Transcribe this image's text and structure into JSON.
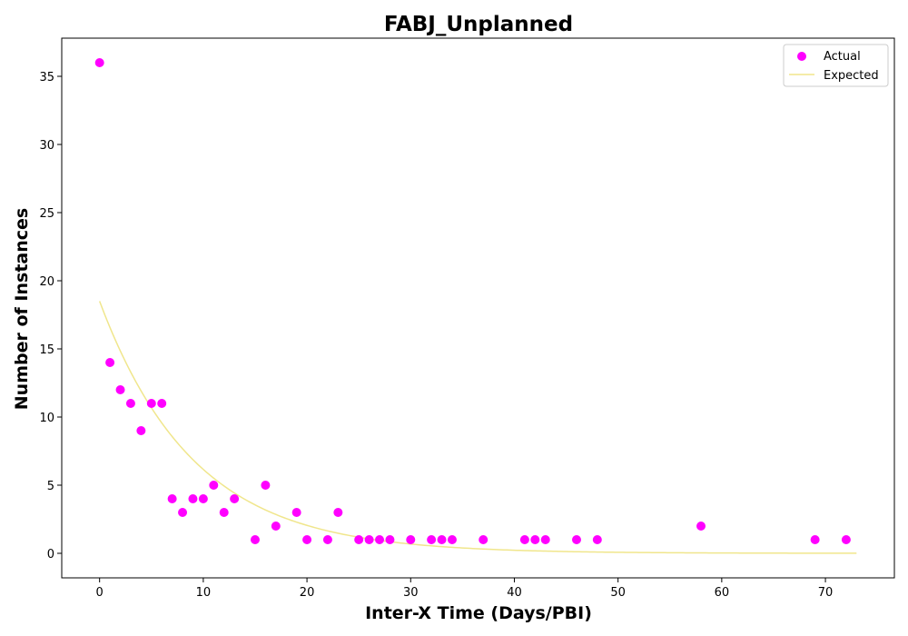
{
  "chart_data": {
    "type": "scatter",
    "title": "FABJ_Unplanned",
    "xlabel": "Inter-X Time (Days/PBI)",
    "ylabel": "Number of Instances",
    "xlim": [
      -3.65,
      76.65
    ],
    "ylim": [
      -1.8,
      37.8
    ],
    "xticks": [
      0,
      10,
      20,
      30,
      40,
      50,
      60,
      70
    ],
    "yticks": [
      0,
      5,
      10,
      15,
      20,
      25,
      30,
      35
    ],
    "grid": false,
    "legend_position": "top-right",
    "series": [
      {
        "name": "Actual",
        "kind": "scatter",
        "color": "#ff00ff",
        "points": [
          [
            0,
            36
          ],
          [
            1,
            14
          ],
          [
            2,
            12
          ],
          [
            3,
            11
          ],
          [
            4,
            9
          ],
          [
            5,
            11
          ],
          [
            6,
            11
          ],
          [
            7,
            4
          ],
          [
            8,
            3
          ],
          [
            9,
            4
          ],
          [
            10,
            4
          ],
          [
            11,
            5
          ],
          [
            12,
            3
          ],
          [
            13,
            4
          ],
          [
            15,
            1
          ],
          [
            16,
            5
          ],
          [
            17,
            2
          ],
          [
            19,
            3
          ],
          [
            20,
            1
          ],
          [
            22,
            1
          ],
          [
            23,
            3
          ],
          [
            25,
            1
          ],
          [
            26,
            1
          ],
          [
            27,
            1
          ],
          [
            28,
            1
          ],
          [
            30,
            1
          ],
          [
            32,
            1
          ],
          [
            33,
            1
          ],
          [
            34,
            1
          ],
          [
            37,
            1
          ],
          [
            41,
            1
          ],
          [
            42,
            1
          ],
          [
            43,
            1
          ],
          [
            46,
            1
          ],
          [
            48,
            1
          ],
          [
            58,
            2
          ],
          [
            69,
            1
          ],
          [
            72,
            1
          ]
        ]
      },
      {
        "name": "Expected",
        "kind": "line",
        "color": "#f0e68c",
        "model": "18.5 * exp(-0.11 * x)",
        "x_range": [
          0,
          73
        ],
        "samples": [
          [
            0,
            18.5
          ],
          [
            5,
            10.7
          ],
          [
            10,
            6.2
          ],
          [
            15,
            3.6
          ],
          [
            20,
            2.05
          ],
          [
            25,
            1.2
          ],
          [
            30,
            0.68
          ],
          [
            35,
            0.39
          ],
          [
            40,
            0.23
          ],
          [
            50,
            0.08
          ],
          [
            60,
            0.03
          ],
          [
            73,
            0.01
          ]
        ]
      }
    ]
  }
}
